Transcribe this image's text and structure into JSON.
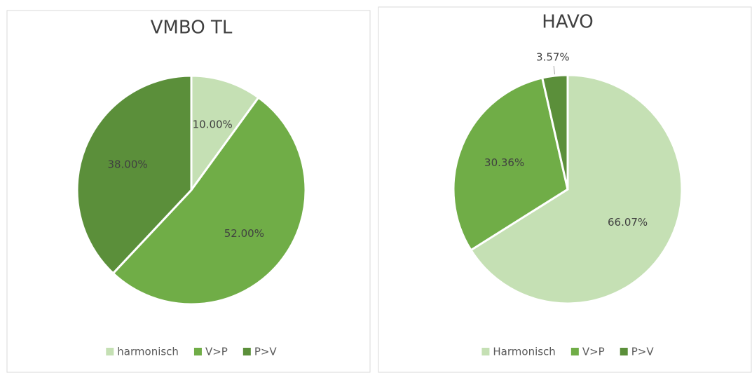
{
  "chart_data": [
    {
      "type": "pie",
      "title": "VMBO TL",
      "categories": [
        "harmonisch",
        "V>P",
        "P>V"
      ],
      "values": [
        10,
        52,
        38
      ],
      "value_labels": [
        "10.00%",
        "52.00%",
        "38.00%"
      ],
      "colors": [
        "#c5e0b4",
        "#70ad47",
        "#5b8f3a"
      ],
      "legend": "bottom"
    },
    {
      "type": "pie",
      "title": "HAVO",
      "categories": [
        "Harmonisch",
        "V>P",
        "P>V"
      ],
      "values": [
        66.07,
        30.36,
        3.57
      ],
      "value_labels": [
        "66.07%",
        "30.36%",
        "3.57%"
      ],
      "colors": [
        "#c5e0b4",
        "#70ad47",
        "#5b8f3a"
      ],
      "legend": "bottom"
    }
  ]
}
